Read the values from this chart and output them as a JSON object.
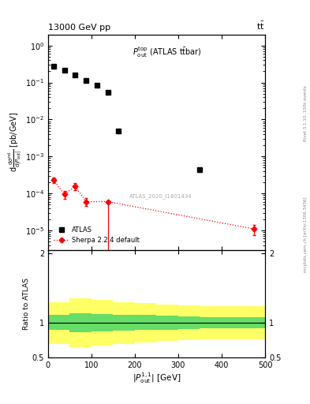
{
  "title_top": "13000 GeV pp",
  "title_right": "tt",
  "plot_label": "$P_{\\rm out}^{\\rm top}$ (ATLAS tt̄bar)",
  "atlas_label": "ATLAS_2020_I1801434",
  "rivet_label": "Rivet 3.1.10, 100k events",
  "arxiv_label": "mcplots.cern.ch [arXiv:1306.3436]",
  "ylabel_ratio": "Ratio to ATLAS",
  "xlim": [
    0,
    500
  ],
  "ylim_main": [
    3e-06,
    2.0
  ],
  "ylim_ratio": [
    0.5,
    2.05
  ],
  "atlas_x": [
    12.5,
    37.5,
    62.5,
    87.5,
    112.5,
    137.5,
    162.5,
    350.0
  ],
  "atlas_y": [
    0.27,
    0.21,
    0.16,
    0.115,
    0.085,
    0.054,
    0.005,
    0.00045
  ],
  "sherpa_x": [
    12.5,
    37.5,
    62.5,
    87.5,
    137.5,
    475.0
  ],
  "sherpa_y": [
    0.00023,
    9.5e-05,
    0.000155,
    6e-05,
    6e-05,
    1.1e-05
  ],
  "sherpa_yerr_lo": [
    4e-05,
    2.2e-05,
    3.5e-05,
    1.5e-05,
    0.00018,
    3.5e-06
  ],
  "sherpa_yerr_hi": [
    4e-05,
    2.2e-05,
    3.5e-05,
    1.5e-05,
    0.0,
    3.5e-06
  ],
  "atlas_color": "black",
  "sherpa_color": "red",
  "ratio_green_lo": [
    0.9,
    0.87,
    0.88,
    0.89,
    0.9,
    0.9,
    0.91,
    0.92,
    0.92,
    0.92
  ],
  "ratio_green_hi": [
    1.12,
    1.14,
    1.13,
    1.12,
    1.11,
    1.1,
    1.09,
    1.08,
    1.08,
    1.08
  ],
  "ratio_yellow_lo": [
    0.7,
    0.65,
    0.67,
    0.7,
    0.72,
    0.74,
    0.75,
    0.76,
    0.76,
    0.76
  ],
  "ratio_yellow_hi": [
    1.3,
    1.35,
    1.33,
    1.3,
    1.28,
    1.26,
    1.25,
    1.24,
    1.24,
    1.24
  ],
  "ratio_x_edges": [
    0,
    50,
    100,
    150,
    200,
    250,
    300,
    350,
    400,
    450,
    500
  ]
}
